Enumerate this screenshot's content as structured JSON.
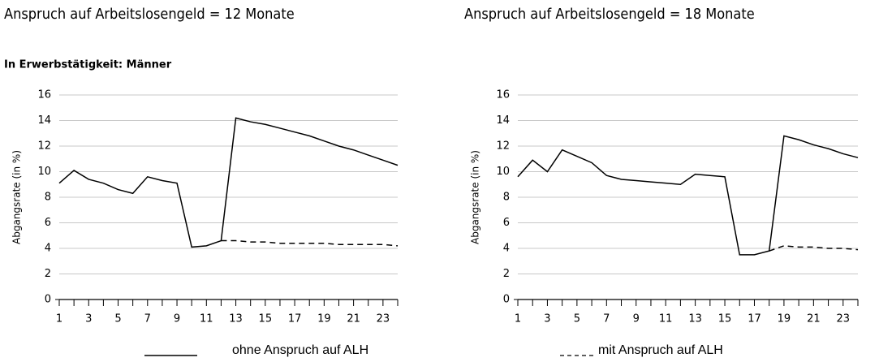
{
  "chart_data": [
    {
      "type": "line",
      "title": "Anspruch auf Arbeitslosengeld = 12 Monate",
      "subtitle": "In Erwerbstätigkeit: Männer",
      "ylabel": "Abgangsrate (in %)",
      "x": [
        1,
        2,
        3,
        4,
        5,
        6,
        7,
        8,
        9,
        10,
        11,
        12,
        13,
        14,
        15,
        16,
        17,
        18,
        19,
        20,
        21,
        22,
        23,
        24
      ],
      "series": [
        {
          "name": "ohne Anspruch auf ALH",
          "color": "#000000",
          "dash": false,
          "values": [
            9.1,
            10.1,
            9.4,
            9.1,
            8.6,
            8.3,
            9.6,
            9.3,
            9.1,
            4.1,
            4.2,
            4.6,
            14.2,
            13.9,
            13.7,
            13.4,
            13.1,
            12.8,
            12.4,
            12.0,
            11.7,
            11.3,
            10.9,
            10.5
          ]
        },
        {
          "name": "mit Anspruch auf ALH",
          "color": "#000000",
          "dash": true,
          "values": [
            null,
            null,
            null,
            null,
            null,
            null,
            null,
            null,
            null,
            null,
            null,
            4.6,
            4.6,
            4.5,
            4.5,
            4.4,
            4.4,
            4.4,
            4.4,
            4.3,
            4.3,
            4.3,
            4.3,
            4.2
          ]
        }
      ],
      "xlim": [
        1,
        24
      ],
      "xticks": [
        1,
        3,
        5,
        7,
        9,
        11,
        13,
        15,
        17,
        19,
        21,
        23
      ],
      "xminorticks": [
        2,
        4,
        6,
        8,
        10,
        12,
        14,
        16,
        18,
        20,
        22,
        24
      ],
      "ylim": [
        0,
        16
      ],
      "yticks": [
        0,
        2,
        4,
        6,
        8,
        10,
        12,
        14,
        16
      ],
      "grid": true
    },
    {
      "type": "line",
      "title": "Anspruch auf Arbeitslosengeld = 18 Monate",
      "ylabel": "Abgangsrate (in %)",
      "x": [
        1,
        2,
        3,
        4,
        5,
        6,
        7,
        8,
        9,
        10,
        11,
        12,
        13,
        14,
        15,
        16,
        17,
        18,
        19,
        20,
        21,
        22,
        23,
        24
      ],
      "series": [
        {
          "color": "#000000",
          "dash": false,
          "values": [
            9.6,
            10.9,
            10.0,
            11.7,
            11.2,
            10.7,
            9.7,
            9.4,
            9.3,
            9.2,
            9.1,
            9.0,
            9.8,
            9.7,
            9.6,
            3.5,
            3.5,
            3.8,
            12.8,
            12.5,
            12.1,
            11.8,
            11.4,
            11.1
          ]
        },
        {
          "color": "#000000",
          "dash": true,
          "values": [
            null,
            null,
            null,
            null,
            null,
            null,
            null,
            null,
            null,
            null,
            null,
            null,
            null,
            null,
            null,
            null,
            null,
            3.8,
            4.2,
            4.1,
            4.1,
            4.0,
            4.0,
            3.9
          ]
        }
      ],
      "xlim": [
        1,
        24
      ],
      "xticks": [
        1,
        3,
        5,
        7,
        9,
        11,
        13,
        15,
        17,
        19,
        21,
        23
      ],
      "xminorticks": [
        2,
        4,
        6,
        8,
        10,
        12,
        14,
        16,
        18,
        20,
        22,
        24
      ],
      "ylim": [
        0,
        16
      ],
      "yticks": [
        0,
        2,
        4,
        6,
        8,
        10,
        12,
        14,
        16
      ],
      "grid": true
    }
  ]
}
